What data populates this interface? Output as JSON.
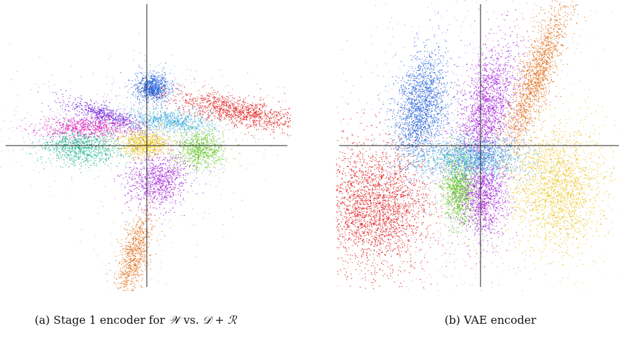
{
  "figure": {
    "caption_a": {
      "label": "(a)",
      "text_prefix": "Stage 1 encoder for ",
      "sym_w": "𝒲",
      "text_vs": " vs. ",
      "sym_d": "𝒟",
      "text_plus": " + ",
      "sym_r": "ℛ"
    },
    "caption_b": {
      "label": "(b)",
      "text": "VAE encoder"
    }
  },
  "chart_data": [
    {
      "type": "scatter",
      "title": "",
      "xlabel": "",
      "ylabel": "",
      "xlim": [
        -1,
        1
      ],
      "ylim": [
        -1,
        1
      ],
      "axes_through_origin": true,
      "grid": false,
      "legend": "none",
      "clusters": [
        {
          "color": "#1f5fd8",
          "cx": 0.04,
          "cy": 0.42,
          "sx": 0.06,
          "sy": 0.05,
          "rot": 0,
          "n": 900
        },
        {
          "color": "#e01010",
          "cx": 0.66,
          "cy": 0.25,
          "sx": 0.25,
          "sy": 0.05,
          "rot": -12,
          "n": 1300
        },
        {
          "color": "#6a14d8",
          "cx": -0.3,
          "cy": 0.22,
          "sx": 0.16,
          "sy": 0.035,
          "rot": -18,
          "n": 700
        },
        {
          "color": "#e018b8",
          "cx": -0.45,
          "cy": 0.13,
          "sx": 0.16,
          "sy": 0.04,
          "rot": 0,
          "n": 800
        },
        {
          "color": "#30a8dc",
          "cx": 0.17,
          "cy": 0.18,
          "sx": 0.15,
          "sy": 0.04,
          "rot": -4,
          "n": 800
        },
        {
          "color": "#10b088",
          "cx": -0.46,
          "cy": -0.01,
          "sx": 0.15,
          "sy": 0.06,
          "rot": 0,
          "n": 1000
        },
        {
          "color": "#e8c010",
          "cx": -0.02,
          "cy": 0.02,
          "sx": 0.09,
          "sy": 0.05,
          "rot": 0,
          "n": 800
        },
        {
          "color": "#58c018",
          "cx": 0.37,
          "cy": -0.02,
          "sx": 0.09,
          "sy": 0.07,
          "rot": 0,
          "n": 800
        },
        {
          "color": "#a018d8",
          "cx": 0.08,
          "cy": -0.25,
          "sx": 0.11,
          "sy": 0.1,
          "rot": 0,
          "n": 1000
        },
        {
          "color": "#e06810",
          "cx": -0.1,
          "cy": -0.8,
          "sx": 0.05,
          "sy": 0.16,
          "rot": -15,
          "n": 900
        }
      ]
    },
    {
      "type": "scatter",
      "title": "",
      "xlabel": "",
      "ylabel": "",
      "xlim": [
        -1,
        1
      ],
      "ylim": [
        -1,
        1
      ],
      "axes_through_origin": true,
      "grid": false,
      "legend": "none",
      "clusters": [
        {
          "color": "#1f5fd8",
          "cx": -0.42,
          "cy": 0.27,
          "sx": 0.09,
          "sy": 0.2,
          "rot": -10,
          "n": 2000
        },
        {
          "color": "#a018d8",
          "cx": 0.04,
          "cy": 0.26,
          "sx": 0.09,
          "sy": 0.22,
          "rot": -15,
          "n": 2000
        },
        {
          "color": "#e06810",
          "cx": 0.38,
          "cy": 0.47,
          "sx": 0.06,
          "sy": 0.28,
          "rot": -20,
          "n": 1800
        },
        {
          "color": "#e01010",
          "cx": -0.75,
          "cy": -0.43,
          "sx": 0.2,
          "sy": 0.22,
          "rot": 0,
          "n": 3000
        },
        {
          "color": "#58c018",
          "cx": -0.15,
          "cy": -0.3,
          "sx": 0.06,
          "sy": 0.13,
          "rot": 0,
          "n": 1200
        },
        {
          "color": "#a018d8",
          "cx": 0.02,
          "cy": -0.35,
          "sx": 0.08,
          "sy": 0.14,
          "rot": 0,
          "n": 1300
        },
        {
          "color": "#30a8dc",
          "cx": -0.05,
          "cy": -0.08,
          "sx": 0.18,
          "sy": 0.07,
          "rot": 0,
          "n": 1600
        },
        {
          "color": "#e8c010",
          "cx": 0.55,
          "cy": -0.3,
          "sx": 0.16,
          "sy": 0.22,
          "rot": 0,
          "n": 2200
        }
      ]
    }
  ]
}
